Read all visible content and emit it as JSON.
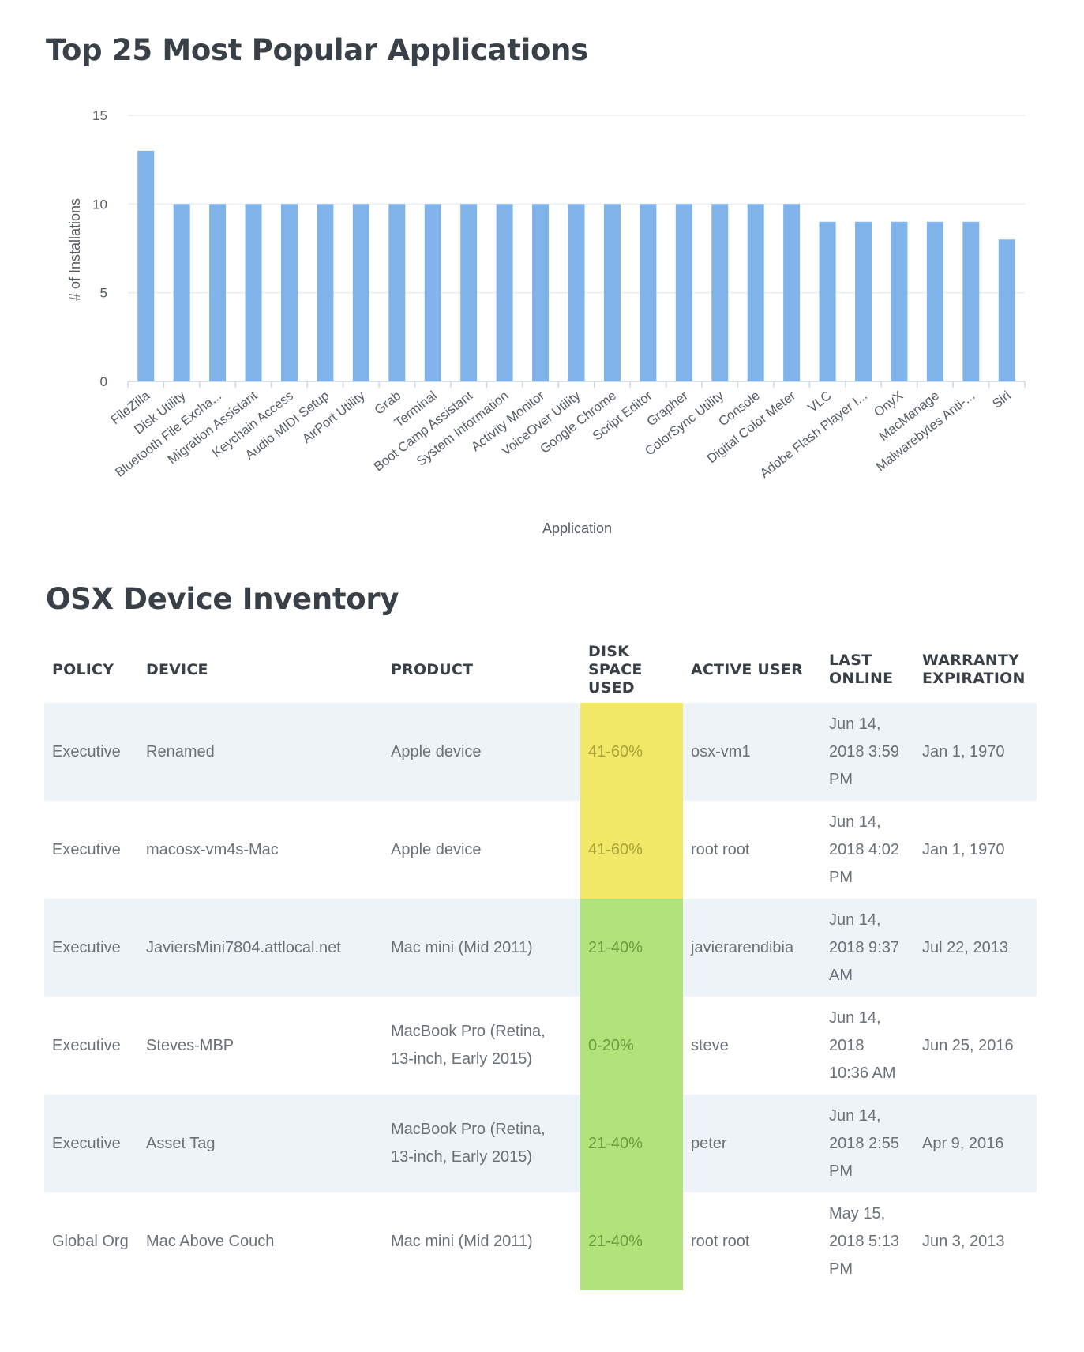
{
  "chart_section": {
    "title": "Top 25 Most Popular Applications"
  },
  "chart_data": {
    "type": "bar",
    "title": "Top 25 Most Popular Applications",
    "xlabel": "Application",
    "ylabel": "# of Installations",
    "ylim": [
      0,
      15
    ],
    "yticks": [
      0,
      5,
      10,
      15
    ],
    "grid": true,
    "bar_color": "#7fb3ea",
    "categories": [
      "FileZilla",
      "Disk Utility",
      "Bluetooth File Excha...",
      "Migration Assistant",
      "Keychain Access",
      "Audio MIDI Setup",
      "AirPort Utility",
      "Grab",
      "Terminal",
      "Boot Camp Assistant",
      "System Information",
      "Activity Monitor",
      "VoiceOver Utility",
      "Google Chrome",
      "Script Editor",
      "Grapher",
      "ColorSync Utility",
      "Console",
      "Digital Color Meter",
      "VLC",
      "Adobe Flash Player I...",
      "OnyX",
      "MacManage",
      "Malwarebytes Anti-...",
      "Siri"
    ],
    "values": [
      13,
      10,
      10,
      10,
      10,
      10,
      10,
      10,
      10,
      10,
      10,
      10,
      10,
      10,
      10,
      10,
      10,
      10,
      10,
      9,
      9,
      9,
      9,
      9,
      8
    ]
  },
  "inventory": {
    "title": "OSX Device Inventory",
    "columns": [
      {
        "key": "policy",
        "label": "POLICY"
      },
      {
        "key": "device",
        "label": "DEVICE"
      },
      {
        "key": "product",
        "label": "PRODUCT"
      },
      {
        "key": "disk",
        "label": "DISK SPACE USED"
      },
      {
        "key": "user",
        "label": "ACTIVE USER"
      },
      {
        "key": "last_online",
        "label": "LAST ONLINE"
      },
      {
        "key": "warranty",
        "label": "WARRANTY EXPIRATION"
      }
    ],
    "disk_colors": {
      "41-60%": {
        "bg": "#f0e866",
        "fg": "#a8a23a"
      },
      "21-40%": {
        "bg": "#b2e27a",
        "fg": "#6a9a40"
      },
      "0-20%": {
        "bg": "#b2e27a",
        "fg": "#6a9a40"
      }
    },
    "rows": [
      {
        "policy": "Executive",
        "device": "Renamed",
        "product": "Apple device",
        "disk": "41-60%",
        "user": "osx-vm1",
        "last_online": "Jun 14, 2018 3:59 PM",
        "warranty": "Jan 1, 1970"
      },
      {
        "policy": "Executive",
        "device": "macosx-vm4s-Mac",
        "product": "Apple device",
        "disk": "41-60%",
        "user": "root root",
        "last_online": "Jun 14, 2018 4:02 PM",
        "warranty": "Jan 1, 1970"
      },
      {
        "policy": "Executive",
        "device": "JaviersMini7804.attlocal.net",
        "product": "Mac mini (Mid 2011)",
        "disk": "21-40%",
        "user": "javierarendibia",
        "last_online": "Jun 14, 2018 9:37 AM",
        "warranty": "Jul 22, 2013"
      },
      {
        "policy": "Executive",
        "device": "Steves-MBP",
        "product": "MacBook Pro (Retina, 13-inch, Early 2015)",
        "disk": "0-20%",
        "user": "steve",
        "last_online": "Jun 14, 2018 10:36 AM",
        "warranty": "Jun 25, 2016"
      },
      {
        "policy": "Executive",
        "device": "Asset Tag",
        "product": "MacBook Pro (Retina, 13-inch, Early 2015)",
        "disk": "21-40%",
        "user": "peter",
        "last_online": "Jun 14, 2018 2:55 PM",
        "warranty": "Apr 9, 2016"
      },
      {
        "policy": "Global Org",
        "device": "Mac Above Couch",
        "product": "Mac mini (Mid 2011)",
        "disk": "21-40%",
        "user": "root root",
        "last_online": "May 15, 2018 5:13 PM",
        "warranty": "Jun 3, 2013"
      }
    ]
  }
}
